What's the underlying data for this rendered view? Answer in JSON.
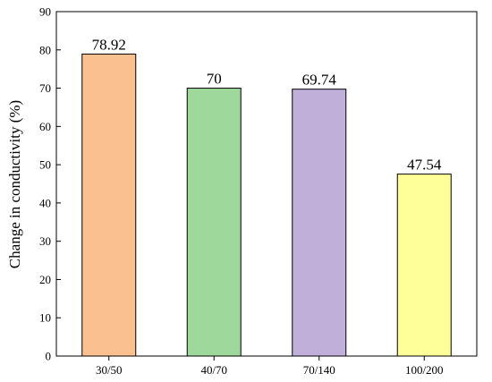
{
  "chart_data": {
    "type": "bar",
    "title": "",
    "xlabel": "",
    "ylabel": "Change in conductivity (%)",
    "categories": [
      "30/50",
      "40/70",
      "70/140",
      "100/200"
    ],
    "values": [
      78.92,
      70,
      69.74,
      47.54
    ],
    "data_labels": [
      "78.92",
      "70",
      "69.74",
      "47.54"
    ],
    "colors": [
      "#FAC090",
      "#9ED89A",
      "#C0AFD8",
      "#FFFF99"
    ],
    "ylim": [
      0,
      90
    ],
    "yticks": [
      0,
      10,
      20,
      30,
      40,
      50,
      60,
      70,
      80,
      90
    ],
    "grid": false,
    "legend": "none"
  }
}
